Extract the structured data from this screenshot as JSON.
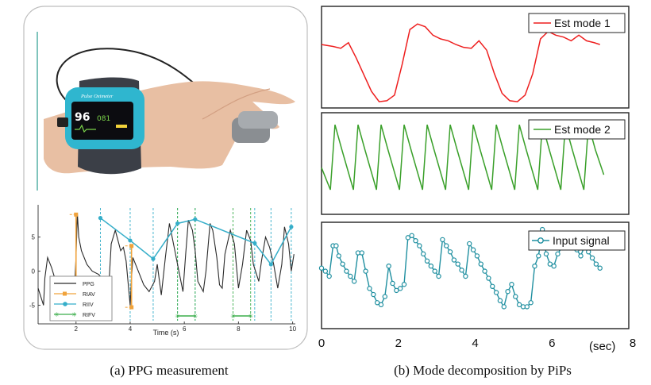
{
  "captions": {
    "a": "(a) PPG measurement",
    "b": "(b) Mode decomposition by PiPs"
  },
  "device": {
    "brand": "Pulse Oximeter",
    "spo2": "96",
    "pr": "081"
  },
  "colors": {
    "ppg": "#2b2b2b",
    "riav": "#f0a33c",
    "riiv": "#35aec9",
    "rifv": "#3aad4a",
    "mode1": "#ee1f1f",
    "mode2": "#3aa02a",
    "input": "#1f8fa0",
    "skin": "#e9bfa0",
    "strap": "#3b3f47",
    "shell": "#2fb6cf"
  },
  "chart_data": [
    {
      "type": "line",
      "panel": "ppg",
      "xlabel": "Time (s)",
      "xticks": [
        2,
        4,
        6,
        8,
        10
      ],
      "yticks": [
        5,
        0,
        -5
      ],
      "xlim": [
        0.6,
        10.1
      ],
      "ylim": [
        -7.5,
        9.5
      ],
      "legend": [
        "PPG",
        "RIAV",
        "RIIV",
        "RIFV"
      ],
      "series": [
        {
          "name": "PPG",
          "x": [
            0.6,
            0.8,
            0.85,
            0.95,
            1.1,
            1.25,
            1.4,
            1.6,
            1.8,
            1.95,
            2.0,
            2.05,
            2.1,
            2.2,
            2.4,
            2.6,
            2.85,
            3.0,
            3.2,
            3.3,
            3.45,
            3.65,
            3.75,
            3.85,
            4.0,
            4.05,
            4.1,
            4.3,
            4.5,
            4.7,
            4.9,
            5.0,
            5.15,
            5.3,
            5.45,
            5.55,
            5.65,
            5.8,
            5.95,
            6.05,
            6.15,
            6.3,
            6.4,
            6.5,
            6.7,
            6.8,
            6.95,
            7.05,
            7.2,
            7.3,
            7.4,
            7.5,
            7.7,
            7.85,
            8.0,
            8.15,
            8.3,
            8.45,
            8.55,
            8.75,
            8.85,
            9.0,
            9.15,
            9.3,
            9.45,
            9.6,
            9.7,
            9.85,
            9.95,
            10.05
          ],
          "y": [
            -2.5,
            -5,
            -1,
            2,
            0.5,
            -1.5,
            -3,
            -4,
            -4.5,
            -2,
            2,
            8.5,
            5,
            3,
            1,
            0,
            -0.5,
            -2,
            -3,
            4,
            6,
            3,
            3.5,
            1.5,
            -5,
            -1,
            2,
            0,
            -2,
            -3,
            -1.5,
            1,
            -3.5,
            2,
            7,
            5,
            3,
            0,
            -3,
            2.5,
            7.5,
            6,
            3,
            -1.5,
            -3,
            0,
            7,
            6,
            2,
            -2,
            -2.5,
            2.5,
            6,
            4,
            -2.5,
            1,
            6,
            4.5,
            1,
            -1.5,
            1.5,
            5,
            3.5,
            1,
            -2.5,
            1,
            6.5,
            4,
            0,
            2.5
          ]
        },
        {
          "name": "RIAV",
          "segments": [
            [
              [
                2.0,
                8.3
              ],
              [
                2.0,
                -1.0
              ]
            ],
            [
              [
                4.05,
                3.7
              ],
              [
                4.05,
                -5.3
              ]
            ]
          ]
        },
        {
          "name": "RIIV",
          "x": [
            2.9,
            4.0,
            4.85,
            5.75,
            6.4,
            8.6,
            9.2,
            9.95
          ],
          "y": [
            7.8,
            4.5,
            1.8,
            7.0,
            7.6,
            4.1,
            1.0,
            6.5
          ]
        },
        {
          "name": "RIFV",
          "segments": [
            [
              [
                5.75,
                -9.8
              ],
              [
                6.4,
                -9.8
              ]
            ],
            [
              [
                7.8,
                -9.8
              ],
              [
                8.45,
                -9.8
              ]
            ]
          ]
        }
      ]
    },
    {
      "type": "line",
      "panel": "mode-decomposition",
      "xlabel": "(sec)",
      "xticks": [
        0,
        2,
        4,
        6,
        8
      ],
      "xlim": [
        0,
        8
      ],
      "series": [
        {
          "name": "Est mode 1",
          "x": [
            0,
            0.3,
            0.5,
            0.7,
            0.9,
            1.1,
            1.3,
            1.5,
            1.7,
            1.9,
            2.1,
            2.3,
            2.5,
            2.7,
            2.9,
            3.1,
            3.3,
            3.5,
            3.7,
            3.9,
            4.1,
            4.3,
            4.5,
            4.7,
            4.9,
            5.1,
            5.3,
            5.5,
            5.7,
            5.9,
            6.1,
            6.3,
            6.5,
            6.7,
            6.9,
            7.1,
            7.25
          ],
          "y": [
            0.66,
            0.64,
            0.62,
            0.68,
            0.52,
            0.34,
            0.16,
            0.05,
            0.06,
            0.12,
            0.45,
            0.82,
            0.88,
            0.85,
            0.76,
            0.72,
            0.7,
            0.66,
            0.63,
            0.62,
            0.7,
            0.6,
            0.35,
            0.14,
            0.06,
            0.05,
            0.12,
            0.35,
            0.72,
            0.8,
            0.76,
            0.74,
            0.7,
            0.76,
            0.7,
            0.68,
            0.66
          ]
        },
        {
          "name": "Est mode 2",
          "peaks_x": [
            0.35,
            0.95,
            1.55,
            2.15,
            2.75,
            3.35,
            3.95,
            4.55,
            5.15,
            5.75,
            6.35,
            6.95
          ],
          "amplitude": [
            0.25,
            0.88
          ]
        },
        {
          "name": "Input signal",
          "x": [
            0,
            0.1,
            0.2,
            0.3,
            0.38,
            0.45,
            0.55,
            0.65,
            0.75,
            0.85,
            0.95,
            1.05,
            1.15,
            1.25,
            1.35,
            1.45,
            1.55,
            1.65,
            1.75,
            1.85,
            1.95,
            2.05,
            2.15,
            2.25,
            2.35,
            2.45,
            2.55,
            2.65,
            2.75,
            2.85,
            2.95,
            3.05,
            3.15,
            3.25,
            3.35,
            3.45,
            3.55,
            3.65,
            3.75,
            3.85,
            3.95,
            4.05,
            4.15,
            4.25,
            4.35,
            4.45,
            4.55,
            4.65,
            4.75,
            4.85,
            4.95,
            5.05,
            5.15,
            5.25,
            5.35,
            5.45,
            5.55,
            5.65,
            5.75,
            5.85,
            5.95,
            6.05,
            6.15,
            6.25,
            6.35,
            6.45,
            6.55,
            6.65,
            6.75,
            6.85,
            6.95,
            7.05,
            7.15,
            7.25
          ],
          "y": [
            0.58,
            0.55,
            0.5,
            0.8,
            0.8,
            0.7,
            0.62,
            0.55,
            0.5,
            0.45,
            0.73,
            0.73,
            0.55,
            0.38,
            0.32,
            0.24,
            0.22,
            0.3,
            0.6,
            0.43,
            0.36,
            0.38,
            0.42,
            0.88,
            0.9,
            0.85,
            0.8,
            0.72,
            0.65,
            0.6,
            0.55,
            0.5,
            0.86,
            0.8,
            0.74,
            0.66,
            0.62,
            0.56,
            0.5,
            0.82,
            0.76,
            0.7,
            0.62,
            0.55,
            0.48,
            0.4,
            0.34,
            0.26,
            0.2,
            0.35,
            0.42,
            0.3,
            0.22,
            0.2,
            0.2,
            0.24,
            0.6,
            0.7,
            0.96,
            0.72,
            0.62,
            0.6,
            0.72,
            0.78,
            0.86,
            0.9,
            0.84,
            0.76,
            0.7,
            0.8,
            0.74,
            0.68,
            0.62,
            0.58
          ]
        }
      ]
    }
  ]
}
